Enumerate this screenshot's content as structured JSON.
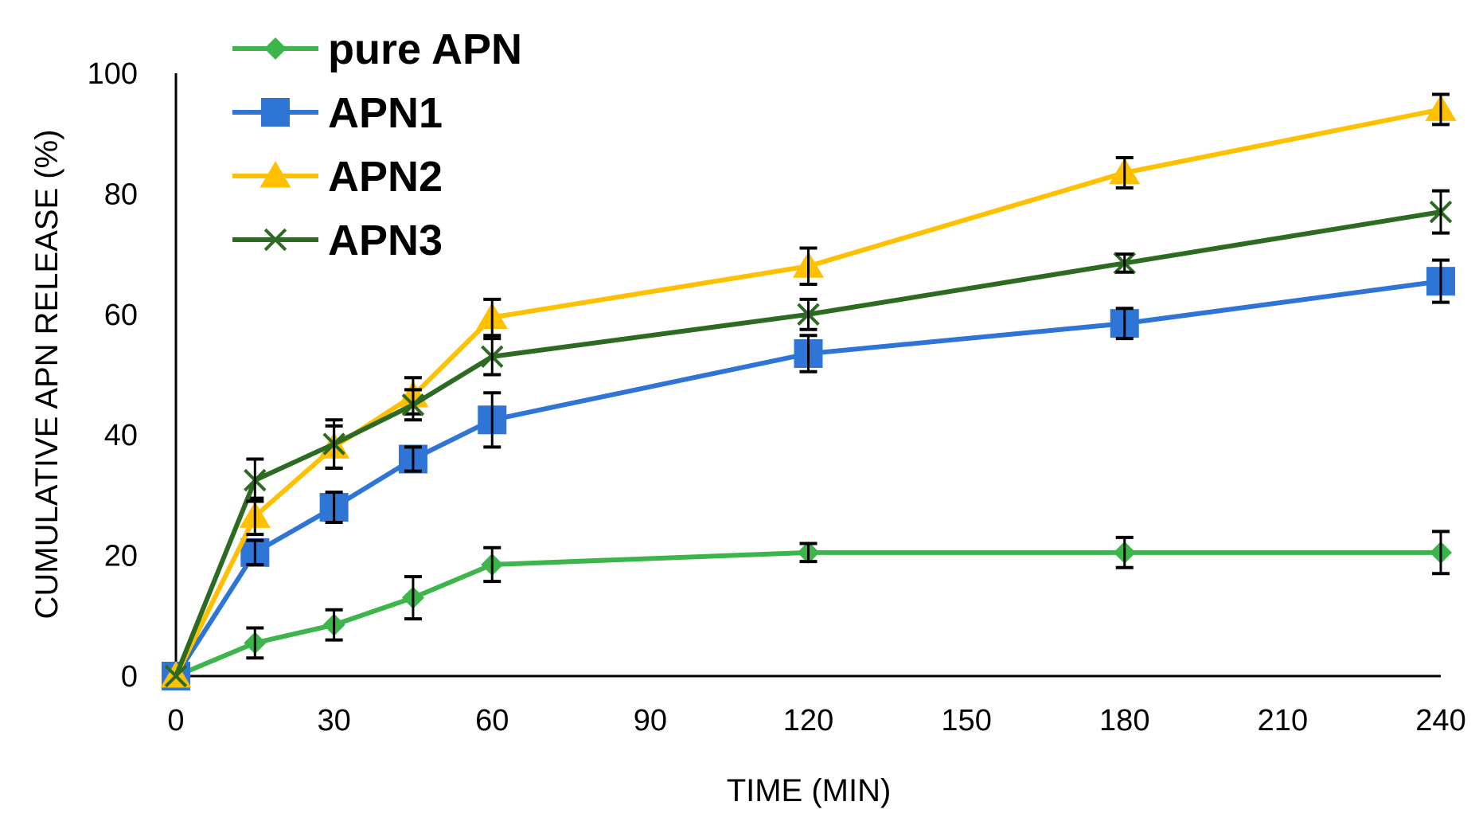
{
  "chart_data": {
    "type": "line",
    "title": "",
    "xlabel": "TIME (MIN)",
    "ylabel": "CUMULATIVE APN RELEASE (%)",
    "xlim": [
      0,
      240
    ],
    "ylim": [
      0,
      100
    ],
    "xticks": [
      0,
      30,
      60,
      90,
      120,
      150,
      180,
      210,
      240
    ],
    "yticks": [
      0,
      20,
      40,
      60,
      80,
      100
    ],
    "grid": false,
    "legend_position": "top-left",
    "x": [
      0,
      15,
      30,
      45,
      60,
      120,
      180,
      240
    ],
    "series": [
      {
        "name": "pure APN",
        "color": "#3cb54a",
        "marker": "diamond",
        "values": [
          0,
          5.5,
          8.5,
          13,
          18.5,
          20.5,
          20.5,
          20.5
        ],
        "errors": [
          0,
          2.5,
          2.5,
          3.5,
          2.8,
          1.5,
          2.5,
          3.5
        ]
      },
      {
        "name": "APN1",
        "color": "#2e75d6",
        "marker": "square",
        "values": [
          0,
          20.5,
          28,
          36,
          42.5,
          53.5,
          58.5,
          65.5
        ],
        "errors": [
          0,
          2,
          2.5,
          2,
          4.5,
          3,
          2.5,
          3.5
        ]
      },
      {
        "name": "APN2",
        "color": "#ffc000",
        "marker": "triangle",
        "values": [
          0,
          26.5,
          38,
          46.5,
          59.5,
          68,
          83.5,
          94
        ],
        "errors": [
          0,
          3,
          3.5,
          3,
          3,
          3,
          2.5,
          2.5
        ]
      },
      {
        "name": "APN3",
        "color": "#2e6b22",
        "marker": "x",
        "values": [
          0,
          32.5,
          38.5,
          45,
          53,
          60,
          68.5,
          77
        ],
        "errors": [
          0,
          3.5,
          4,
          2.5,
          3,
          2.5,
          1.5,
          3.5
        ]
      }
    ]
  }
}
